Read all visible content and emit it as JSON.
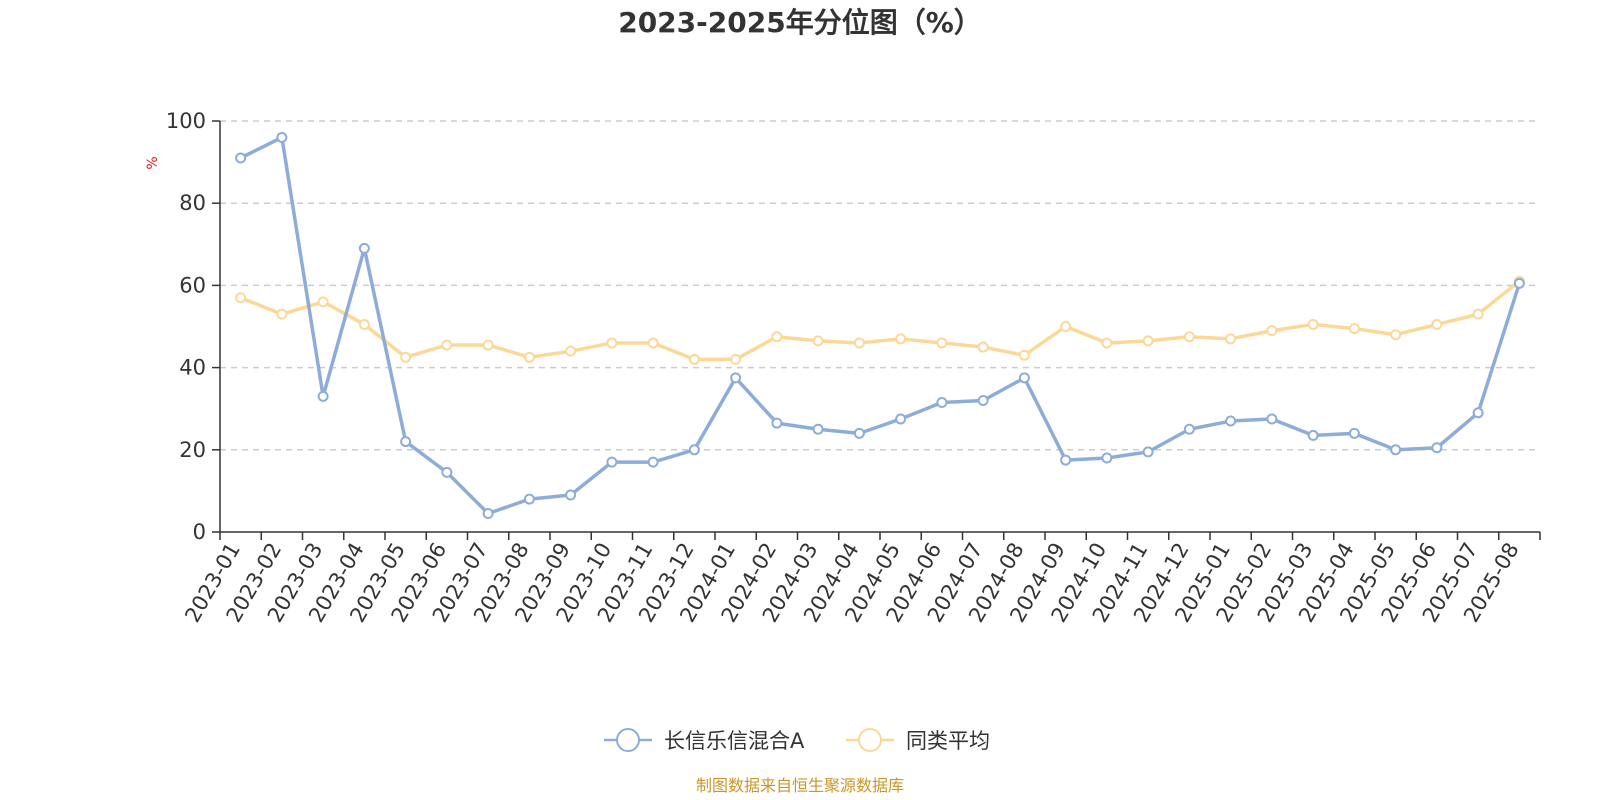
{
  "colors": {
    "series1": "#8eacd9",
    "series2": "#fcd898",
    "axis": "#333333",
    "grid": "#cccccc",
    "ylabel": "#e02020",
    "source": "#c9962a"
  },
  "chart_data": {
    "type": "line",
    "title": "2023-2025年分位图（%）",
    "ylabel": "%",
    "xlabel": "",
    "ylim": [
      0,
      100
    ],
    "yticks": [
      0,
      20,
      40,
      60,
      80,
      100
    ],
    "grid": true,
    "legend_position": "bottom",
    "categories": [
      "2023-01",
      "2023-02",
      "2023-03",
      "2023-04",
      "2023-05",
      "2023-06",
      "2023-07",
      "2023-08",
      "2023-09",
      "2023-10",
      "2023-11",
      "2023-12",
      "2024-01",
      "2024-02",
      "2024-03",
      "2024-04",
      "2024-05",
      "2024-06",
      "2024-07",
      "2024-08",
      "2024-09",
      "2024-10",
      "2024-11",
      "2024-12",
      "2025-01",
      "2025-02",
      "2025-03",
      "2025-04",
      "2025-05",
      "2025-06",
      "2025-07",
      "2025-08"
    ],
    "series": [
      {
        "name": "长信乐信混合A",
        "color_key": "series1",
        "values": [
          91,
          96,
          33,
          69,
          22,
          14.5,
          4.5,
          8,
          9,
          17,
          17,
          20,
          37.5,
          26.5,
          25,
          24,
          27.5,
          31.5,
          32,
          37.5,
          17.5,
          18,
          19.5,
          25,
          27,
          27.5,
          23.5,
          24,
          20,
          20.5,
          29,
          60.5
        ]
      },
      {
        "name": "同类平均",
        "color_key": "series2",
        "values": [
          57,
          53,
          56,
          50.5,
          42.5,
          45.5,
          45.5,
          42.5,
          44,
          46,
          46,
          42,
          42,
          47.5,
          46.5,
          46,
          47,
          46,
          45,
          43,
          50,
          46,
          46.5,
          47.5,
          47,
          49,
          50.5,
          49.5,
          48,
          50.5,
          53,
          61
        ]
      }
    ]
  },
  "source_note": "制图数据来自恒生聚源数据库"
}
